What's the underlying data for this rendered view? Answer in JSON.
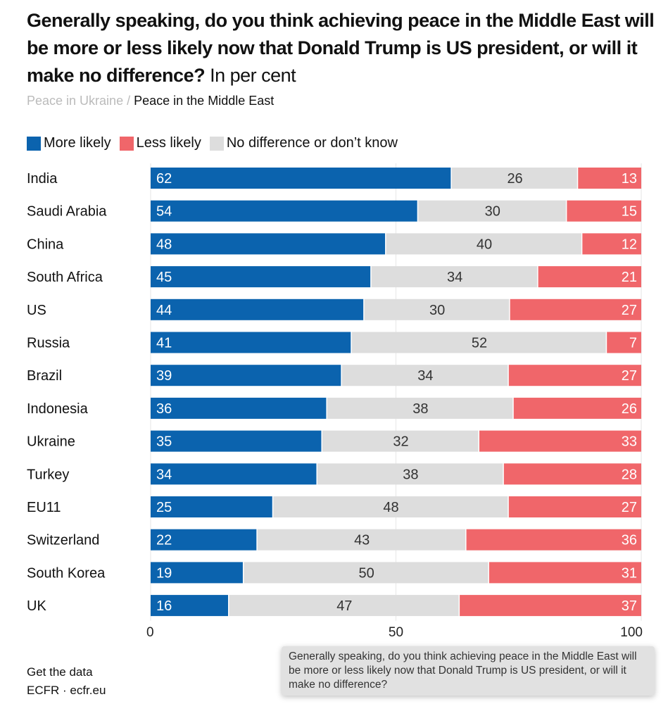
{
  "title": "Generally speaking, do you think achieving peace in the Middle East will be more or less likely now that Donald Trump is US president, or will it make no difference?",
  "subtitle": "In per cent",
  "tooltip": "Generally speaking, do you think achieving peace in the Middle East will be more or less likely now that Donald Trump is US president, or will it make no difference?",
  "tabs": {
    "inactive": "Peace in Ukraine",
    "separator": "/",
    "active": "Peace in the Middle East"
  },
  "footer": {
    "link": "Get the data",
    "source": "ECFR · ecfr.eu"
  },
  "colors": {
    "more": "#0b63ae",
    "less": "#f0666a",
    "none": "#dddddd"
  },
  "chart_data": {
    "type": "bar",
    "stacked": true,
    "orientation": "horizontal",
    "legend_position": "top-left",
    "categories": [
      "India",
      "Saudi Arabia",
      "China",
      "South Africa",
      "US",
      "Russia",
      "Brazil",
      "Indonesia",
      "Ukraine",
      "Turkey",
      "EU11",
      "Switzerland",
      "South Korea",
      "UK"
    ],
    "series": [
      {
        "name": "More likely",
        "values": [
          62,
          54,
          48,
          45,
          44,
          41,
          39,
          36,
          35,
          34,
          25,
          22,
          19,
          16
        ]
      },
      {
        "name": "No difference or don’t know",
        "values": [
          26,
          30,
          40,
          34,
          30,
          52,
          34,
          38,
          32,
          38,
          48,
          43,
          50,
          47
        ]
      },
      {
        "name": "Less likely",
        "values": [
          13,
          15,
          12,
          21,
          27,
          7,
          27,
          26,
          33,
          28,
          27,
          36,
          31,
          37
        ]
      }
    ],
    "legend_order": [
      "More likely",
      "Less likely",
      "No difference or don’t know"
    ],
    "xlim": [
      0,
      100
    ],
    "xticks": [
      "0",
      "50",
      "100"
    ],
    "grid": true
  }
}
